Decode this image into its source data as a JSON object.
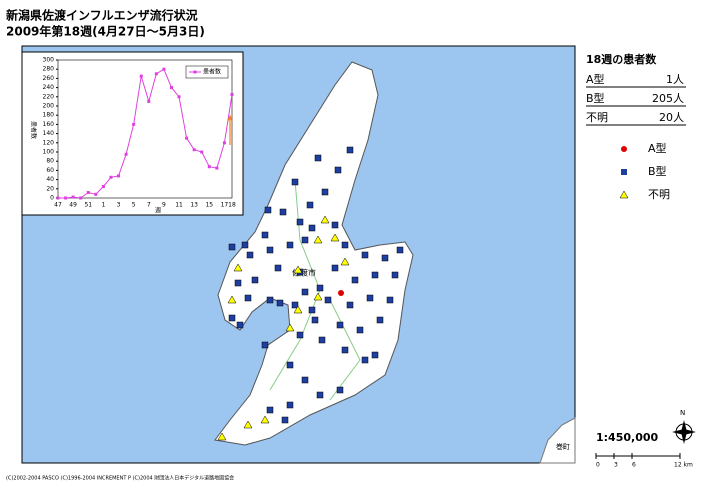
{
  "header": {
    "title": "新潟県佐渡インフルエンザ流行状況",
    "subtitle": "2009年第18週(4月27日～5月3日)"
  },
  "chart_data": {
    "type": "line",
    "categories": [
      "47",
      null,
      "49",
      null,
      "51",
      null,
      "1",
      null,
      "3",
      null,
      "5",
      null,
      "7",
      null,
      "9",
      null,
      "11",
      null,
      "13",
      null,
      "15",
      null,
      "17",
      "18"
    ],
    "series": [
      {
        "name": "患者数",
        "color": "#e040e0",
        "values": [
          0,
          0,
          2,
          0,
          12,
          8,
          25,
          45,
          48,
          95,
          160,
          265,
          210,
          270,
          280,
          240,
          220,
          130,
          105,
          100,
          68,
          65,
          120,
          225
        ]
      }
    ],
    "x_label": "週",
    "y_label": "患者数",
    "ylim": [
      0,
      300
    ],
    "yticks": [
      0,
      20,
      40,
      60,
      80,
      100,
      120,
      140,
      160,
      180,
      200,
      220,
      240,
      260,
      280,
      300
    ]
  },
  "legend": {
    "title": "18週の患者数",
    "rows": [
      [
        "A型",
        "1人"
      ],
      [
        "B型",
        "205人"
      ],
      [
        "不明",
        "20人"
      ]
    ],
    "symbols": [
      "A型",
      "B型",
      "不明"
    ]
  },
  "map": {
    "city": "佐渡市",
    "mainland": "巻町",
    "scale": "1:450,000",
    "north": "N",
    "scale_ticks": [
      "0",
      "3",
      "6",
      "12 km"
    ]
  },
  "footer": "(C)2002-2004 PASCO (C)1996-2004 INCREMENT P (C)2004 財団法人日本デジタル道路地図協会"
}
